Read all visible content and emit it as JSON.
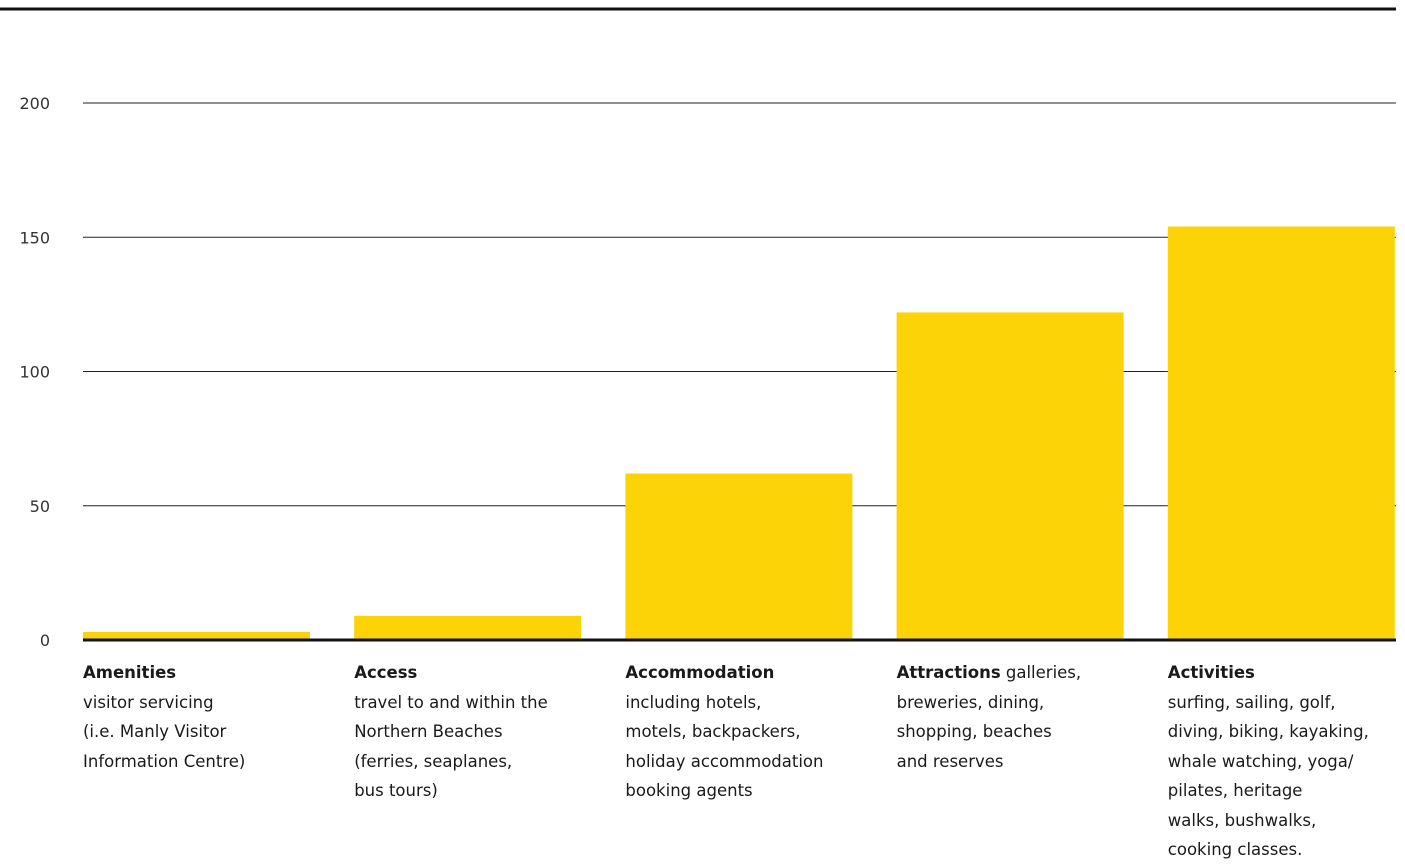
{
  "chart_data": {
    "type": "bar",
    "categories": [
      {
        "name": "Amenities",
        "inline_desc": "",
        "desc_lines": [
          "visitor servicing",
          "(i.e. Manly Visitor",
          "Information Centre)"
        ]
      },
      {
        "name": "Access",
        "inline_desc": "",
        "desc_lines": [
          "travel to and within the",
          "Northern Beaches",
          "(ferries, seaplanes,",
          "bus tours)"
        ]
      },
      {
        "name": "Accommodation",
        "inline_desc": "",
        "desc_lines": [
          "including hotels,",
          "motels, backpackers,",
          "holiday accommodation",
          "booking agents"
        ]
      },
      {
        "name": "Attractions",
        "inline_desc": " galleries,",
        "desc_lines": [
          "breweries, dining,",
          "shopping, beaches",
          "and reserves"
        ]
      },
      {
        "name": "Activities",
        "inline_desc": "",
        "desc_lines": [
          "surfing, sailing, golf,",
          "diving, biking, kayaking,",
          "whale watching, yoga/",
          "pilates, heritage",
          "walks, bushwalks,",
          "cooking classes."
        ]
      }
    ],
    "values": [
      3,
      9,
      62,
      122,
      154
    ],
    "yticks": [
      0,
      50,
      100,
      150,
      200
    ],
    "ylim": [
      0,
      200
    ],
    "grid": true,
    "legend": "none",
    "title": "",
    "xlabel": "",
    "ylabel": "",
    "colors": {
      "bar": "#FCD307",
      "grid": "#222222",
      "axis": "#111111",
      "tick_text": "#333333"
    }
  }
}
